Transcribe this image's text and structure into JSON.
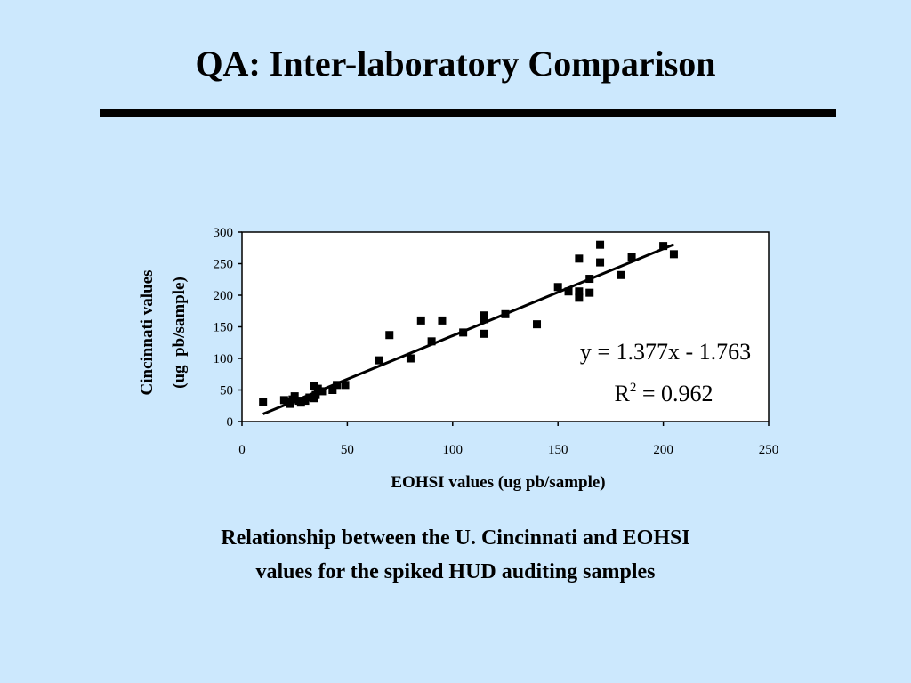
{
  "slide": {
    "title": "QA: Inter-laboratory Comparison",
    "caption_line1": "Relationship between the U. Cincinnati and EOHSI",
    "caption_line2": "values for the spiked HUD auditing samples"
  },
  "chart_data": {
    "type": "scatter",
    "xlabel": "EOHSI values (ug pb/sample)",
    "ylabel_line1": "Cincinnati values",
    "ylabel_line2": "(ug  pb/sample)",
    "xlim": [
      0,
      250
    ],
    "ylim": [
      0,
      300
    ],
    "xticks": [
      0,
      50,
      100,
      150,
      200,
      250
    ],
    "yticks": [
      0,
      50,
      100,
      150,
      200,
      250,
      300
    ],
    "grid": false,
    "legend": "none",
    "marker": "square",
    "color": "#000000",
    "trendline": {
      "type": "linear",
      "slope": 1.377,
      "intercept": -1.763,
      "x_range": [
        10,
        205
      ]
    },
    "equation_text": "y = 1.377x - 1.763",
    "r2_base": "R",
    "r2_sup": "2",
    "r2_rest": " = 0.962",
    "points": [
      [
        10,
        31
      ],
      [
        20,
        34
      ],
      [
        22,
        31
      ],
      [
        23,
        28
      ],
      [
        24,
        35
      ],
      [
        25,
        40
      ],
      [
        27,
        33
      ],
      [
        28,
        30
      ],
      [
        30,
        33
      ],
      [
        32,
        38
      ],
      [
        34,
        37
      ],
      [
        34,
        56
      ],
      [
        35,
        42
      ],
      [
        36,
        52
      ],
      [
        38,
        48
      ],
      [
        43,
        50
      ],
      [
        45,
        58
      ],
      [
        49,
        58
      ],
      [
        65,
        97
      ],
      [
        70,
        137
      ],
      [
        80,
        100
      ],
      [
        85,
        160
      ],
      [
        90,
        127
      ],
      [
        95,
        160
      ],
      [
        105,
        141
      ],
      [
        115,
        139
      ],
      [
        115,
        162
      ],
      [
        115,
        168
      ],
      [
        125,
        170
      ],
      [
        140,
        154
      ],
      [
        150,
        213
      ],
      [
        155,
        206
      ],
      [
        160,
        196
      ],
      [
        160,
        206
      ],
      [
        160,
        258
      ],
      [
        165,
        204
      ],
      [
        165,
        226
      ],
      [
        170,
        252
      ],
      [
        170,
        280
      ],
      [
        180,
        232
      ],
      [
        185,
        260
      ],
      [
        200,
        278
      ],
      [
        205,
        265
      ]
    ]
  }
}
